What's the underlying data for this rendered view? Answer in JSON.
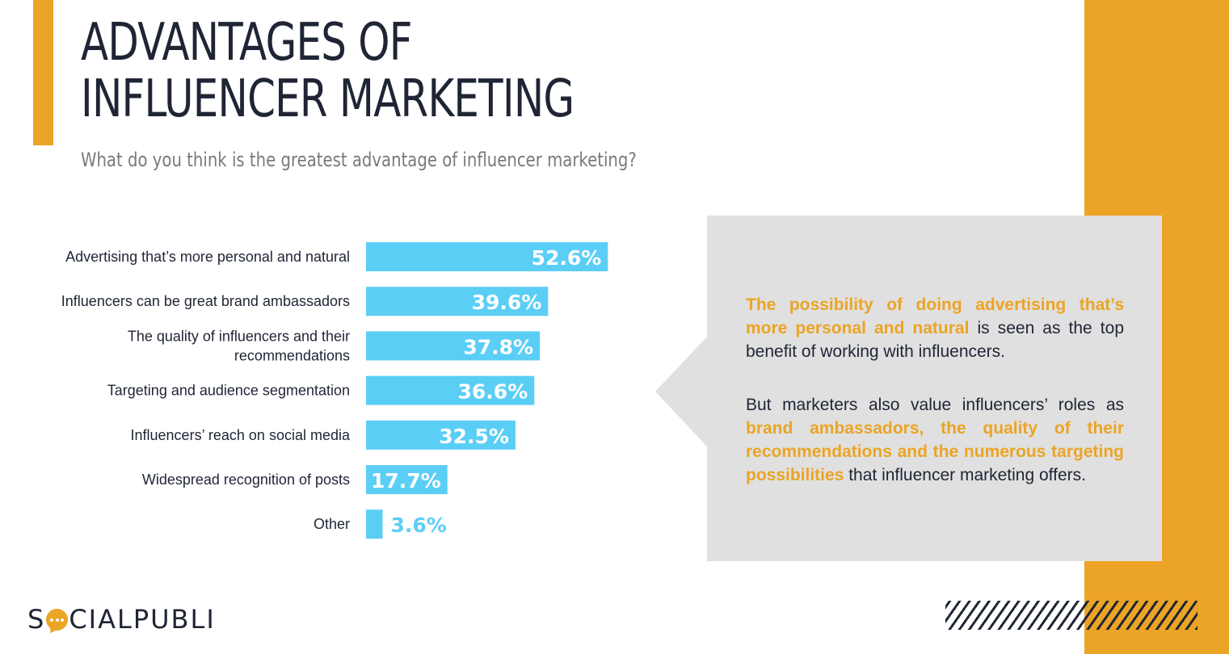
{
  "title_line1": "ADVANTAGES OF",
  "title_line2": "INFLUENCER MARKETING",
  "subtitle": "What do you think is the greatest advantage of influencer marketing?",
  "colors": {
    "accent": "#eba425",
    "bar": "#5bcef6",
    "dark": "#1f2535",
    "callout_bg": "#e0e0e0"
  },
  "chart_data": {
    "type": "bar",
    "orientation": "horizontal",
    "title": "",
    "xlabel": "",
    "ylabel": "",
    "xlim": [
      0,
      100
    ],
    "grid": false,
    "categories": [
      [
        "Advertising that’s more personal and natural"
      ],
      [
        "Influencers can be great brand ambassadors"
      ],
      [
        "The quality of influencers and their",
        "recommendations"
      ],
      [
        "Targeting and audience segmentation"
      ],
      [
        "Influencers’ reach on social media"
      ],
      [
        "Widespread recognition of posts"
      ],
      [
        "Other"
      ]
    ],
    "values": [
      52.6,
      39.6,
      37.8,
      36.6,
      32.5,
      17.7,
      3.6
    ],
    "value_labels": [
      "52.6%",
      "39.6%",
      "37.8%",
      "36.6%",
      "32.5%",
      "17.7%",
      "3.6%"
    ]
  },
  "callout": {
    "p1_highlight": "The possibility of doing advertising that’s more personal and natural",
    "p1_rest": " is seen as the top benefit of working with influencers.",
    "p2_start": "But marketers also value influencers’ roles as ",
    "p2_highlight": "brand ambassadors, the quality of their recommendations and the numerous targeting possibilities",
    "p2_rest": " that influencer marketing offers."
  },
  "logo": {
    "part1": "S",
    "part2": "CIALPUBLI"
  }
}
